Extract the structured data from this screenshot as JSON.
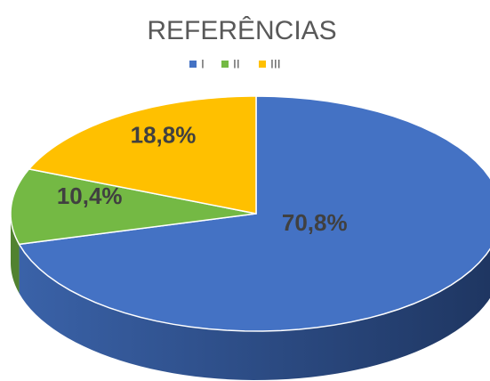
{
  "chart_data": {
    "type": "pie3d",
    "title": "REFERÊNCIAS",
    "categories": [
      "I",
      "II",
      "III"
    ],
    "values": [
      70.8,
      10.4,
      18.8
    ],
    "value_labels": [
      "70,8%",
      "10,4%",
      "18,8%"
    ],
    "colors": [
      "#4472c4",
      "#74b944",
      "#ffc000"
    ],
    "legend": "top"
  }
}
